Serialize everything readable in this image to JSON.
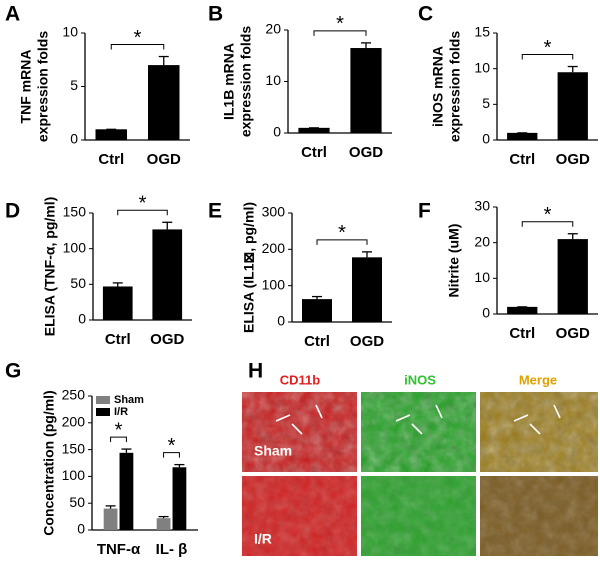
{
  "chart_data": [
    {
      "type": "bar",
      "label": "A",
      "ylabel": [
        "TNF mRNA",
        "expression folds"
      ],
      "categories": [
        "Ctrl",
        "OGD"
      ],
      "values": [
        1,
        7
      ],
      "errors": [
        0,
        0.8
      ],
      "color": "#000000",
      "ylim": [
        0,
        10
      ],
      "yticks": [
        0,
        5,
        10
      ],
      "annotation": "*"
    },
    {
      "type": "bar",
      "label": "B",
      "ylabel": [
        "IL1B mRNA",
        "expression folds"
      ],
      "categories": [
        "Ctrl",
        "OGD"
      ],
      "values": [
        1,
        16.5
      ],
      "errors": [
        0,
        1
      ],
      "color": "#000000",
      "ylim": [
        0,
        20
      ],
      "yticks": [
        0,
        10,
        20
      ],
      "annotation": "*"
    },
    {
      "type": "bar",
      "label": "C",
      "ylabel": [
        "iNOS mRNA",
        "expression folds"
      ],
      "categories": [
        "Ctrl",
        "OGD"
      ],
      "values": [
        1,
        9.5
      ],
      "errors": [
        0,
        0.8
      ],
      "color": "#000000",
      "ylim": [
        0,
        15
      ],
      "yticks": [
        0,
        5,
        10,
        15
      ],
      "annotation": "*"
    },
    {
      "type": "bar",
      "label": "D",
      "ylabel": [
        "ELISA (TNF-α, pg/ml)"
      ],
      "categories": [
        "Ctrl",
        "OGD"
      ],
      "values": [
        47,
        127
      ],
      "errors": [
        5,
        10
      ],
      "color": "#000000",
      "ylim": [
        0,
        150
      ],
      "yticks": [
        0,
        50,
        100,
        150
      ],
      "annotation": "*"
    },
    {
      "type": "bar",
      "label": "E",
      "ylabel": [
        "ELISA (IL1⊠, pg/ml)"
      ],
      "categories": [
        "Ctrl",
        "OGD"
      ],
      "values": [
        63,
        178
      ],
      "errors": [
        7,
        15
      ],
      "color": "#000000",
      "ylim": [
        0,
        300
      ],
      "yticks": [
        0,
        100,
        200,
        300
      ],
      "annotation": "*"
    },
    {
      "type": "bar",
      "label": "F",
      "ylabel": [
        "Nitrite (uM)"
      ],
      "categories": [
        "Ctrl",
        "OGD"
      ],
      "values": [
        2,
        21
      ],
      "errors": [
        0,
        1.5
      ],
      "color": "#000000",
      "ylim": [
        0,
        30
      ],
      "yticks": [
        0,
        10,
        20,
        30
      ],
      "annotation": "*"
    },
    {
      "type": "grouped-bar",
      "label": "G",
      "ylabel": [
        "Concentration (pg/ml)"
      ],
      "categories": [
        "TNF-α",
        "IL- β"
      ],
      "series": [
        {
          "name": "Sham",
          "color": "#808080",
          "values": [
            40,
            22
          ],
          "errors": [
            5,
            3
          ]
        },
        {
          "name": "I/R",
          "color": "#000000",
          "values": [
            144,
            117
          ],
          "errors": [
            7,
            5
          ]
        }
      ],
      "ylim": [
        0,
        250
      ],
      "yticks": [
        0,
        50,
        100,
        150,
        200,
        250
      ],
      "legend": "upper left",
      "annotation": "*"
    }
  ],
  "image_panel": {
    "label": "H",
    "columns": [
      "CD11b",
      "iNOS",
      "Merge"
    ],
    "rows": [
      "Sham",
      "I/R"
    ]
  }
}
